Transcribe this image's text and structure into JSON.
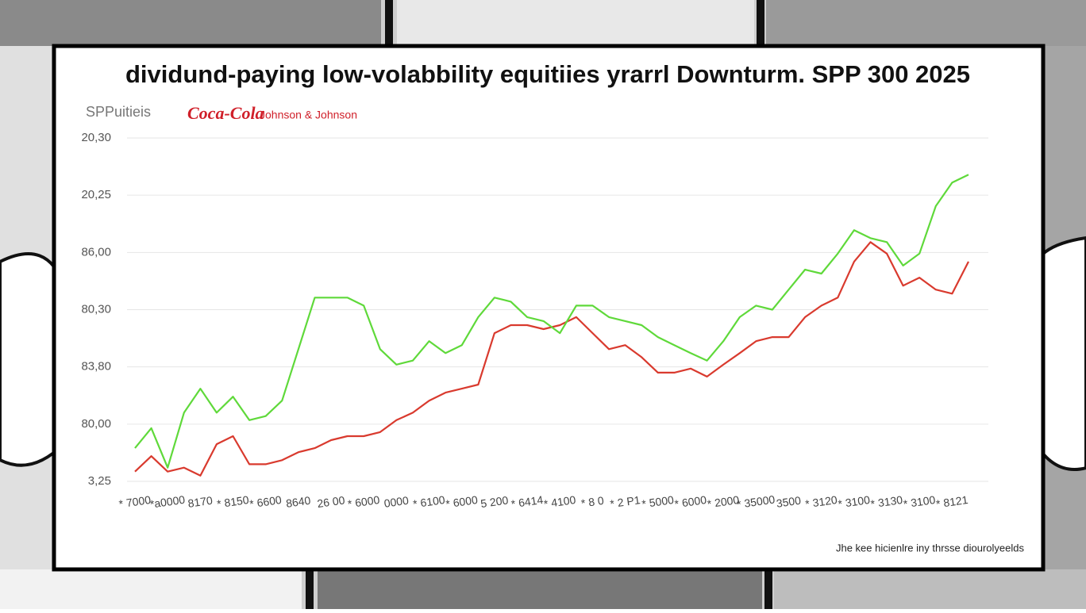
{
  "chart_data": {
    "type": "line",
    "title": "dividund-paying low-volabbility equitiies yrarrl Downturm. SPP 300 2025",
    "legend_logo": "Coca-Cola",
    "footnote": "Jhe kee hicienlre iny thrsse diourolyeelds",
    "categories": [
      "* 7000",
      null,
      "*a0000",
      null,
      "8170",
      null,
      "* 8150",
      null,
      "* 6600",
      null,
      "8640",
      null,
      "26 00",
      null,
      "* 6000",
      null,
      "0000",
      null,
      "* 6100",
      null,
      "* 6000",
      null,
      "5 200",
      null,
      "* 6414",
      null,
      "* 4100",
      null,
      "* 8 0",
      null,
      "* 2 P1",
      null,
      "* 5000",
      null,
      "* 6000",
      null,
      "* 2000",
      null,
      "* 35000",
      null,
      "3500",
      null,
      "* 3120",
      null,
      "* 3100",
      null,
      "* 3130",
      null,
      "* 3100",
      null,
      "* 8121",
      null
    ],
    "series": [
      {
        "name": "SPPuitieis",
        "color": "#5fd93a",
        "values": [
          0.58,
          0.93,
          0.24,
          1.2,
          1.62,
          1.2,
          1.48,
          1.07,
          1.14,
          1.41,
          2.31,
          3.21,
          3.21,
          3.21,
          3.07,
          2.31,
          2.04,
          2.11,
          2.45,
          2.24,
          2.38,
          2.87,
          3.21,
          3.14,
          2.87,
          2.8,
          2.59,
          3.07,
          3.07,
          2.87,
          2.8,
          2.73,
          2.52,
          2.38,
          2.24,
          2.11,
          2.45,
          2.87,
          3.07,
          3.0,
          3.35,
          3.7,
          3.63,
          3.98,
          4.39,
          4.25,
          4.18,
          3.77,
          3.98,
          4.81,
          5.22,
          5.36
        ]
      },
      {
        "name": "Johnson & Johnson",
        "color": "#d93a2e",
        "values": [
          0.17,
          0.44,
          0.17,
          0.24,
          0.1,
          0.65,
          0.79,
          0.3,
          0.3,
          0.37,
          0.51,
          0.58,
          0.72,
          0.79,
          0.79,
          0.86,
          1.07,
          1.2,
          1.41,
          1.55,
          1.62,
          1.69,
          2.59,
          2.73,
          2.73,
          2.66,
          2.73,
          2.87,
          2.59,
          2.31,
          2.38,
          2.17,
          1.9,
          1.9,
          1.97,
          1.83,
          2.04,
          2.24,
          2.45,
          2.52,
          2.52,
          2.87,
          3.07,
          3.21,
          3.84,
          4.18,
          3.98,
          3.42,
          3.56,
          3.35,
          3.28,
          3.84
        ]
      }
    ],
    "ylim": [
      0,
      6
    ],
    "yticks": [
      {
        "value": 0,
        "label": "3,25"
      },
      {
        "value": 1,
        "label": "80,00"
      },
      {
        "value": 2,
        "label": "83,80"
      },
      {
        "value": 3,
        "label": "80,30"
      },
      {
        "value": 4,
        "label": "86,00"
      },
      {
        "value": 5,
        "label": "20,25"
      },
      {
        "value": 6,
        "label": "20,30"
      }
    ],
    "grid": true
  }
}
